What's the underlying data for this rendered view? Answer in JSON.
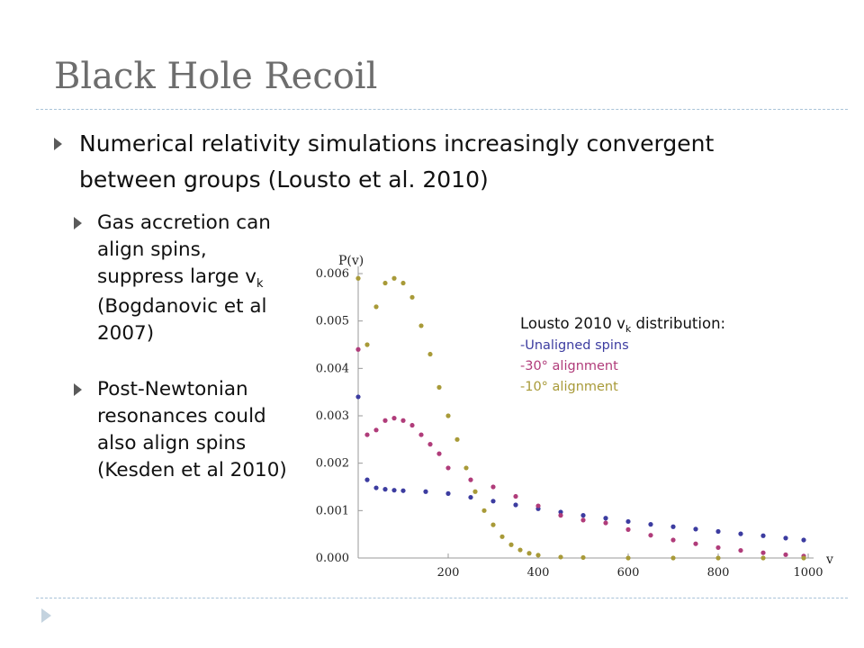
{
  "slide": {
    "title": "Black Hole Recoil",
    "bullet_main": "Numerical relativity simulations increasingly convergent between groups (Lousto et al. 2010)",
    "bullet_gas": {
      "pre": "Gas accretion can align spins, suppress large v",
      "sub": "k",
      "post": " (Bogdanovic et al 2007)"
    },
    "bullet_pn": "Post-Newtonian resonances could also align spins (Kesden et al 2010)"
  },
  "legend": {
    "title_pre": "Lousto  2010 v",
    "title_sub": "k",
    "title_post": " distribution:",
    "items": [
      "-Unaligned spins",
      "-30° alignment",
      "-10° alignment"
    ]
  },
  "colors": {
    "unaligned": "#3c3ca0",
    "align30": "#b03c7a",
    "align10": "#a89a38",
    "accent_rule": "#a9c3d8"
  },
  "chart_data": {
    "type": "scatter",
    "ylabel": "P(v)",
    "xlabel": "v",
    "xlim": [
      0,
      1000
    ],
    "ylim": [
      0,
      0.006
    ],
    "xticks": [
      "200",
      "400",
      "600",
      "800",
      "1000"
    ],
    "yticks": [
      "0.000",
      "0.001",
      "0.002",
      "0.003",
      "0.004",
      "0.005",
      "0.006"
    ],
    "grid": false,
    "series": [
      {
        "name": "-Unaligned spins",
        "color": "#3c3ca0",
        "x": [
          0,
          20,
          40,
          60,
          80,
          100,
          150,
          200,
          250,
          300,
          350,
          400,
          450,
          500,
          550,
          600,
          650,
          700,
          750,
          800,
          850,
          900,
          950,
          990
        ],
        "y": [
          0.0034,
          0.00165,
          0.00148,
          0.00145,
          0.00143,
          0.00142,
          0.0014,
          0.00136,
          0.00128,
          0.0012,
          0.00112,
          0.00104,
          0.00097,
          0.0009,
          0.00084,
          0.00077,
          0.00071,
          0.00066,
          0.00061,
          0.00056,
          0.00051,
          0.00047,
          0.00042,
          0.00038
        ]
      },
      {
        "name": "-30° alignment",
        "color": "#b03c7a",
        "x": [
          0,
          20,
          40,
          60,
          80,
          100,
          120,
          140,
          160,
          180,
          200,
          250,
          300,
          350,
          400,
          450,
          500,
          550,
          600,
          650,
          700,
          750,
          800,
          850,
          900,
          950,
          990
        ],
        "y": [
          0.0044,
          0.0026,
          0.0027,
          0.0029,
          0.00295,
          0.0029,
          0.0028,
          0.0026,
          0.0024,
          0.0022,
          0.0019,
          0.00165,
          0.0015,
          0.0013,
          0.0011,
          0.0009,
          0.0008,
          0.00074,
          0.0006,
          0.00048,
          0.00038,
          0.0003,
          0.00022,
          0.00016,
          0.00011,
          7e-05,
          4e-05
        ]
      },
      {
        "name": "-10° alignment",
        "color": "#a89a38",
        "x": [
          0,
          20,
          40,
          60,
          80,
          100,
          120,
          140,
          160,
          180,
          200,
          220,
          240,
          260,
          280,
          300,
          320,
          340,
          360,
          380,
          400,
          450,
          500,
          600,
          700,
          800,
          900,
          990
        ],
        "y": [
          0.0059,
          0.0045,
          0.0053,
          0.0058,
          0.0059,
          0.0058,
          0.0055,
          0.0049,
          0.0043,
          0.0036,
          0.003,
          0.0025,
          0.0019,
          0.0014,
          0.001,
          0.0007,
          0.00045,
          0.00028,
          0.00017,
          0.0001,
          6e-05,
          2e-05,
          1e-05,
          0.0,
          0.0,
          0.0,
          0.0,
          0.0
        ]
      }
    ]
  }
}
